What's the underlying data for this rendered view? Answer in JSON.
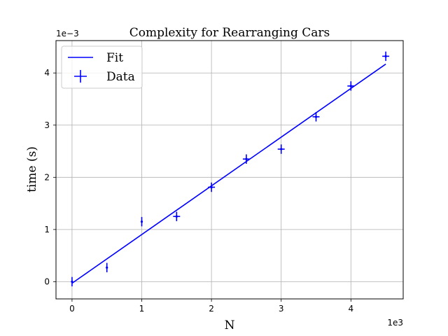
{
  "chart_data": {
    "type": "scatter",
    "title": "Complexity for Rearranging Cars",
    "xlabel": "N",
    "ylabel": "time (s)",
    "x_scale_label": "1e3",
    "y_scale_label": "1e−3",
    "xlim": [
      -230,
      4750
    ],
    "ylim": [
      -0.00033,
      0.00462
    ],
    "x_ticks": [
      0,
      1000,
      2000,
      3000,
      4000
    ],
    "x_tick_labels": [
      "0",
      "1",
      "2",
      "3",
      "4"
    ],
    "y_ticks": [
      0,
      0.001,
      0.002,
      0.003,
      0.004
    ],
    "y_tick_labels": [
      "0",
      "1",
      "2",
      "3",
      "4"
    ],
    "grid": true,
    "legend_position": "top-left",
    "color": "#0000ff",
    "series": [
      {
        "name": "Fit",
        "kind": "line",
        "x": [
          0,
          4500
        ],
        "y": [
          -3e-05,
          0.00417
        ]
      },
      {
        "name": "Data",
        "kind": "errorbar",
        "x": [
          0,
          500,
          1000,
          1500,
          2000,
          2500,
          3000,
          3500,
          4000,
          4500
        ],
        "y": [
          0.0,
          0.00027,
          0.00115,
          0.00125,
          0.00181,
          0.00235,
          0.00254,
          0.00316,
          0.00375,
          0.00432
        ],
        "xerr": [
          0,
          0,
          0,
          50,
          50,
          50,
          50,
          50,
          50,
          50
        ],
        "yerr": [
          9e-05,
          9e-05,
          9e-05,
          9e-05,
          9e-05,
          9e-05,
          9e-05,
          9e-05,
          9e-05,
          9e-05
        ]
      }
    ]
  }
}
